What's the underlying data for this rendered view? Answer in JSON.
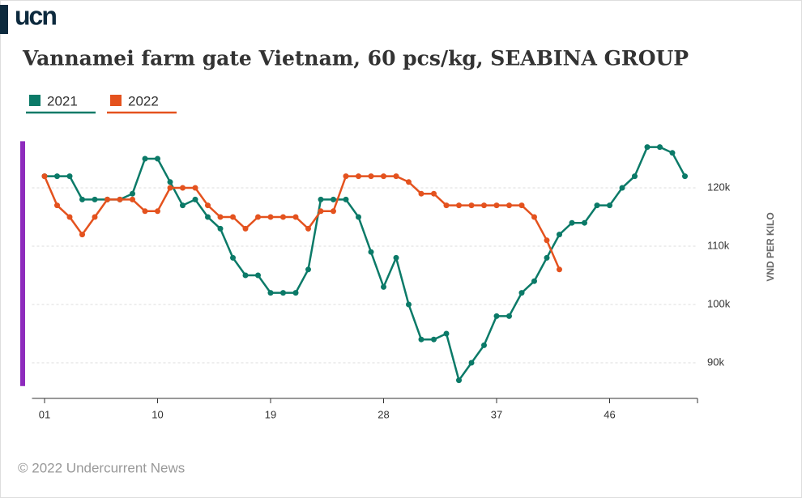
{
  "logo": "ucn",
  "footer": "© 2022 Undercurrent News",
  "chart_data": {
    "type": "line",
    "title": "Vannamei farm gate Vietnam, 60 pcs/kg, SEABINA GROUP",
    "y_label": "VND PER KILO",
    "x": [
      1,
      2,
      3,
      4,
      5,
      6,
      7,
      8,
      9,
      10,
      11,
      12,
      13,
      14,
      15,
      16,
      17,
      18,
      19,
      20,
      21,
      22,
      23,
      24,
      25,
      26,
      27,
      28,
      29,
      30,
      31,
      32,
      33,
      34,
      35,
      36,
      37,
      38,
      39,
      40,
      41,
      42,
      43,
      44,
      45,
      46,
      47,
      48,
      49,
      50,
      51,
      52
    ],
    "series": [
      {
        "name": "2021",
        "color": "#0b7a68",
        "values": [
          122000,
          122000,
          122000,
          118000,
          118000,
          118000,
          118000,
          119000,
          125000,
          125000,
          121000,
          117000,
          118000,
          115000,
          113000,
          108000,
          105000,
          105000,
          102000,
          102000,
          102000,
          106000,
          118000,
          118000,
          118000,
          115000,
          109000,
          103000,
          108000,
          100000,
          94000,
          94000,
          95000,
          87000,
          90000,
          93000,
          98000,
          98000,
          102000,
          104000,
          108000,
          112000,
          114000,
          114000,
          117000,
          117000,
          120000,
          122000,
          127000,
          127000,
          126000,
          122000
        ]
      },
      {
        "name": "2022",
        "color": "#e4521e",
        "values": [
          122000,
          117000,
          115000,
          112000,
          115000,
          118000,
          118000,
          118000,
          116000,
          116000,
          120000,
          120000,
          120000,
          117000,
          115000,
          115000,
          113000,
          115000,
          115000,
          115000,
          115000,
          113000,
          116000,
          116000,
          122000,
          122000,
          122000,
          122000,
          122000,
          121000,
          119000,
          119000,
          117000,
          117000,
          117000,
          117000,
          117000,
          117000,
          117000,
          115000,
          111000,
          106000,
          null,
          null,
          null,
          null,
          null,
          null,
          null,
          null,
          null,
          null
        ]
      }
    ],
    "xlim": [
      0,
      53
    ],
    "xticks": [
      {
        "value": 1,
        "label": "01"
      },
      10,
      19,
      28,
      37,
      46
    ],
    "ylim": [
      86000,
      128000
    ],
    "yticks": [
      {
        "value": 90000,
        "label": "90k"
      },
      {
        "value": 100000,
        "label": "100k"
      },
      {
        "value": 110000,
        "label": "110k"
      },
      {
        "value": 120000,
        "label": "120k"
      }
    ],
    "grid": true
  }
}
